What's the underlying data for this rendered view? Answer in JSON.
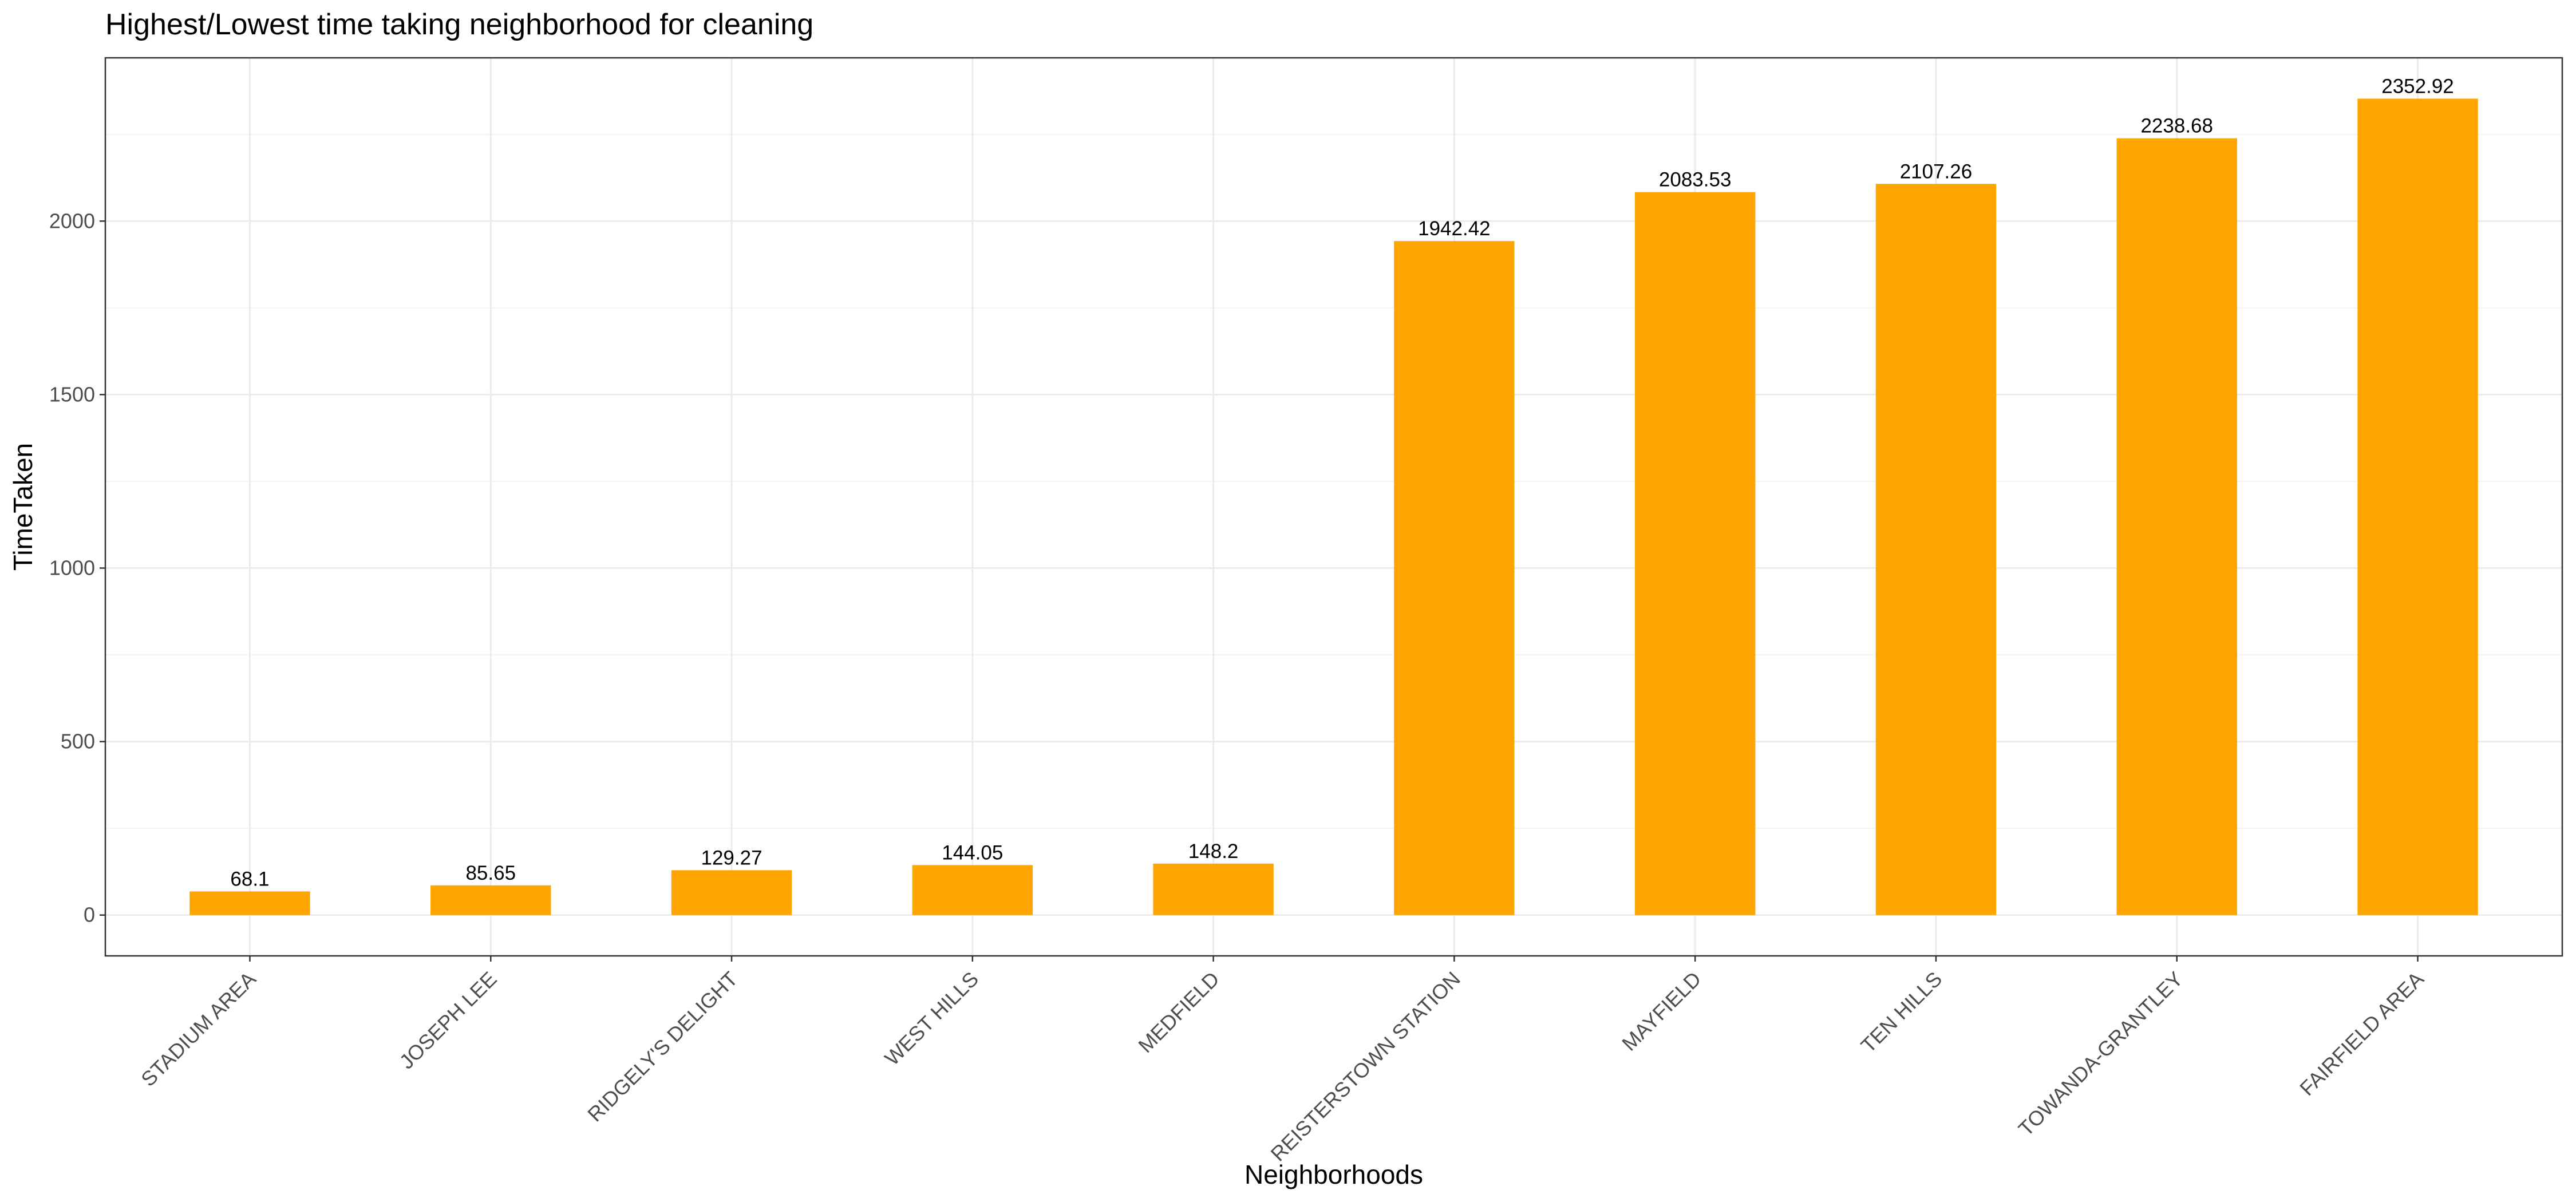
{
  "chart_data": {
    "type": "bar",
    "title": "Highest/Lowest time taking neighborhood for cleaning",
    "xlabel": "Neighborhoods",
    "ylabel": "TimeTaken",
    "categories": [
      "STADIUM AREA",
      "JOSEPH LEE",
      "RIDGELY'S DELIGHT",
      "WEST HILLS",
      "MEDFIELD",
      "REISTERSTOWN STATION",
      "MAYFIELD",
      "TEN HILLS",
      "TOWANDA-GRANTLEY",
      "FAIRFIELD AREA"
    ],
    "values": [
      68.1,
      85.65,
      129.27,
      144.05,
      148.2,
      1942.42,
      2083.53,
      2107.26,
      2238.68,
      2352.92
    ],
    "value_labels": [
      "68.1",
      "85.65",
      "129.27",
      "144.05",
      "148.2",
      "1942.42",
      "2083.53",
      "2107.26",
      "2238.68",
      "2352.92"
    ],
    "yticks": [
      0,
      500,
      1000,
      1500,
      2000
    ],
    "ytick_labels": [
      "0",
      "500",
      "1000",
      "1500",
      "2000"
    ],
    "ylim": [
      -117.6,
      2470.6
    ],
    "grid": true,
    "bar_color": "#FFA500",
    "grid_major_color": "#EBEBEB",
    "grid_minor_color": "#F4F4F4",
    "panel_border_color": "#333333"
  }
}
